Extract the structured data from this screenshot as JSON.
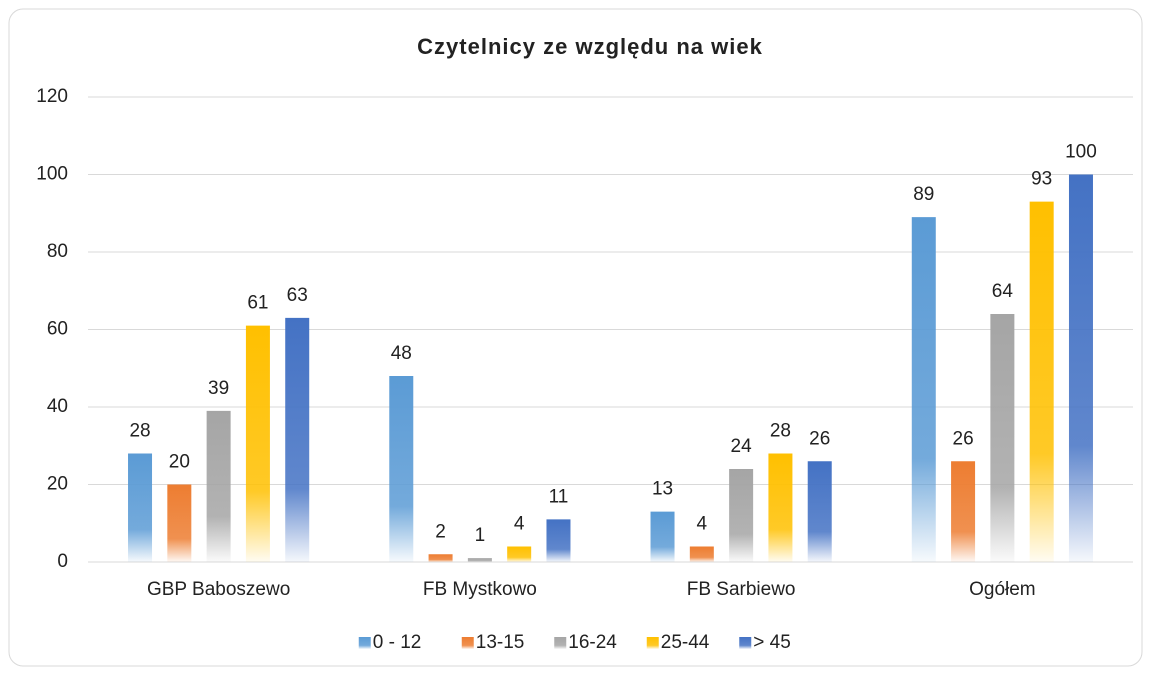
{
  "chart_data": {
    "type": "bar",
    "title": "Czytelnicy ze względu na wiek",
    "categories": [
      "GBP Baboszewo",
      "FB Mystkowo",
      "FB Sarbiewo",
      "Ogółem"
    ],
    "series": [
      {
        "name": "0 - 12",
        "color": "#5b9bd5",
        "values": [
          28,
          48,
          13,
          89
        ]
      },
      {
        "name": "13-15",
        "color": "#ed7d31",
        "values": [
          20,
          2,
          4,
          26
        ]
      },
      {
        "name": "16-24",
        "color": "#a5a5a5",
        "values": [
          39,
          1,
          24,
          64
        ]
      },
      {
        "name": "25-44",
        "color": "#ffc000",
        "values": [
          61,
          4,
          28,
          93
        ]
      },
      {
        "name": "> 45",
        "color": "#4472c4",
        "values": [
          63,
          11,
          26,
          100
        ]
      }
    ],
    "ylim": [
      0,
      120
    ],
    "yticks": [
      0,
      20,
      40,
      60,
      80,
      100,
      120
    ],
    "grid": true,
    "legend": "bottom"
  }
}
